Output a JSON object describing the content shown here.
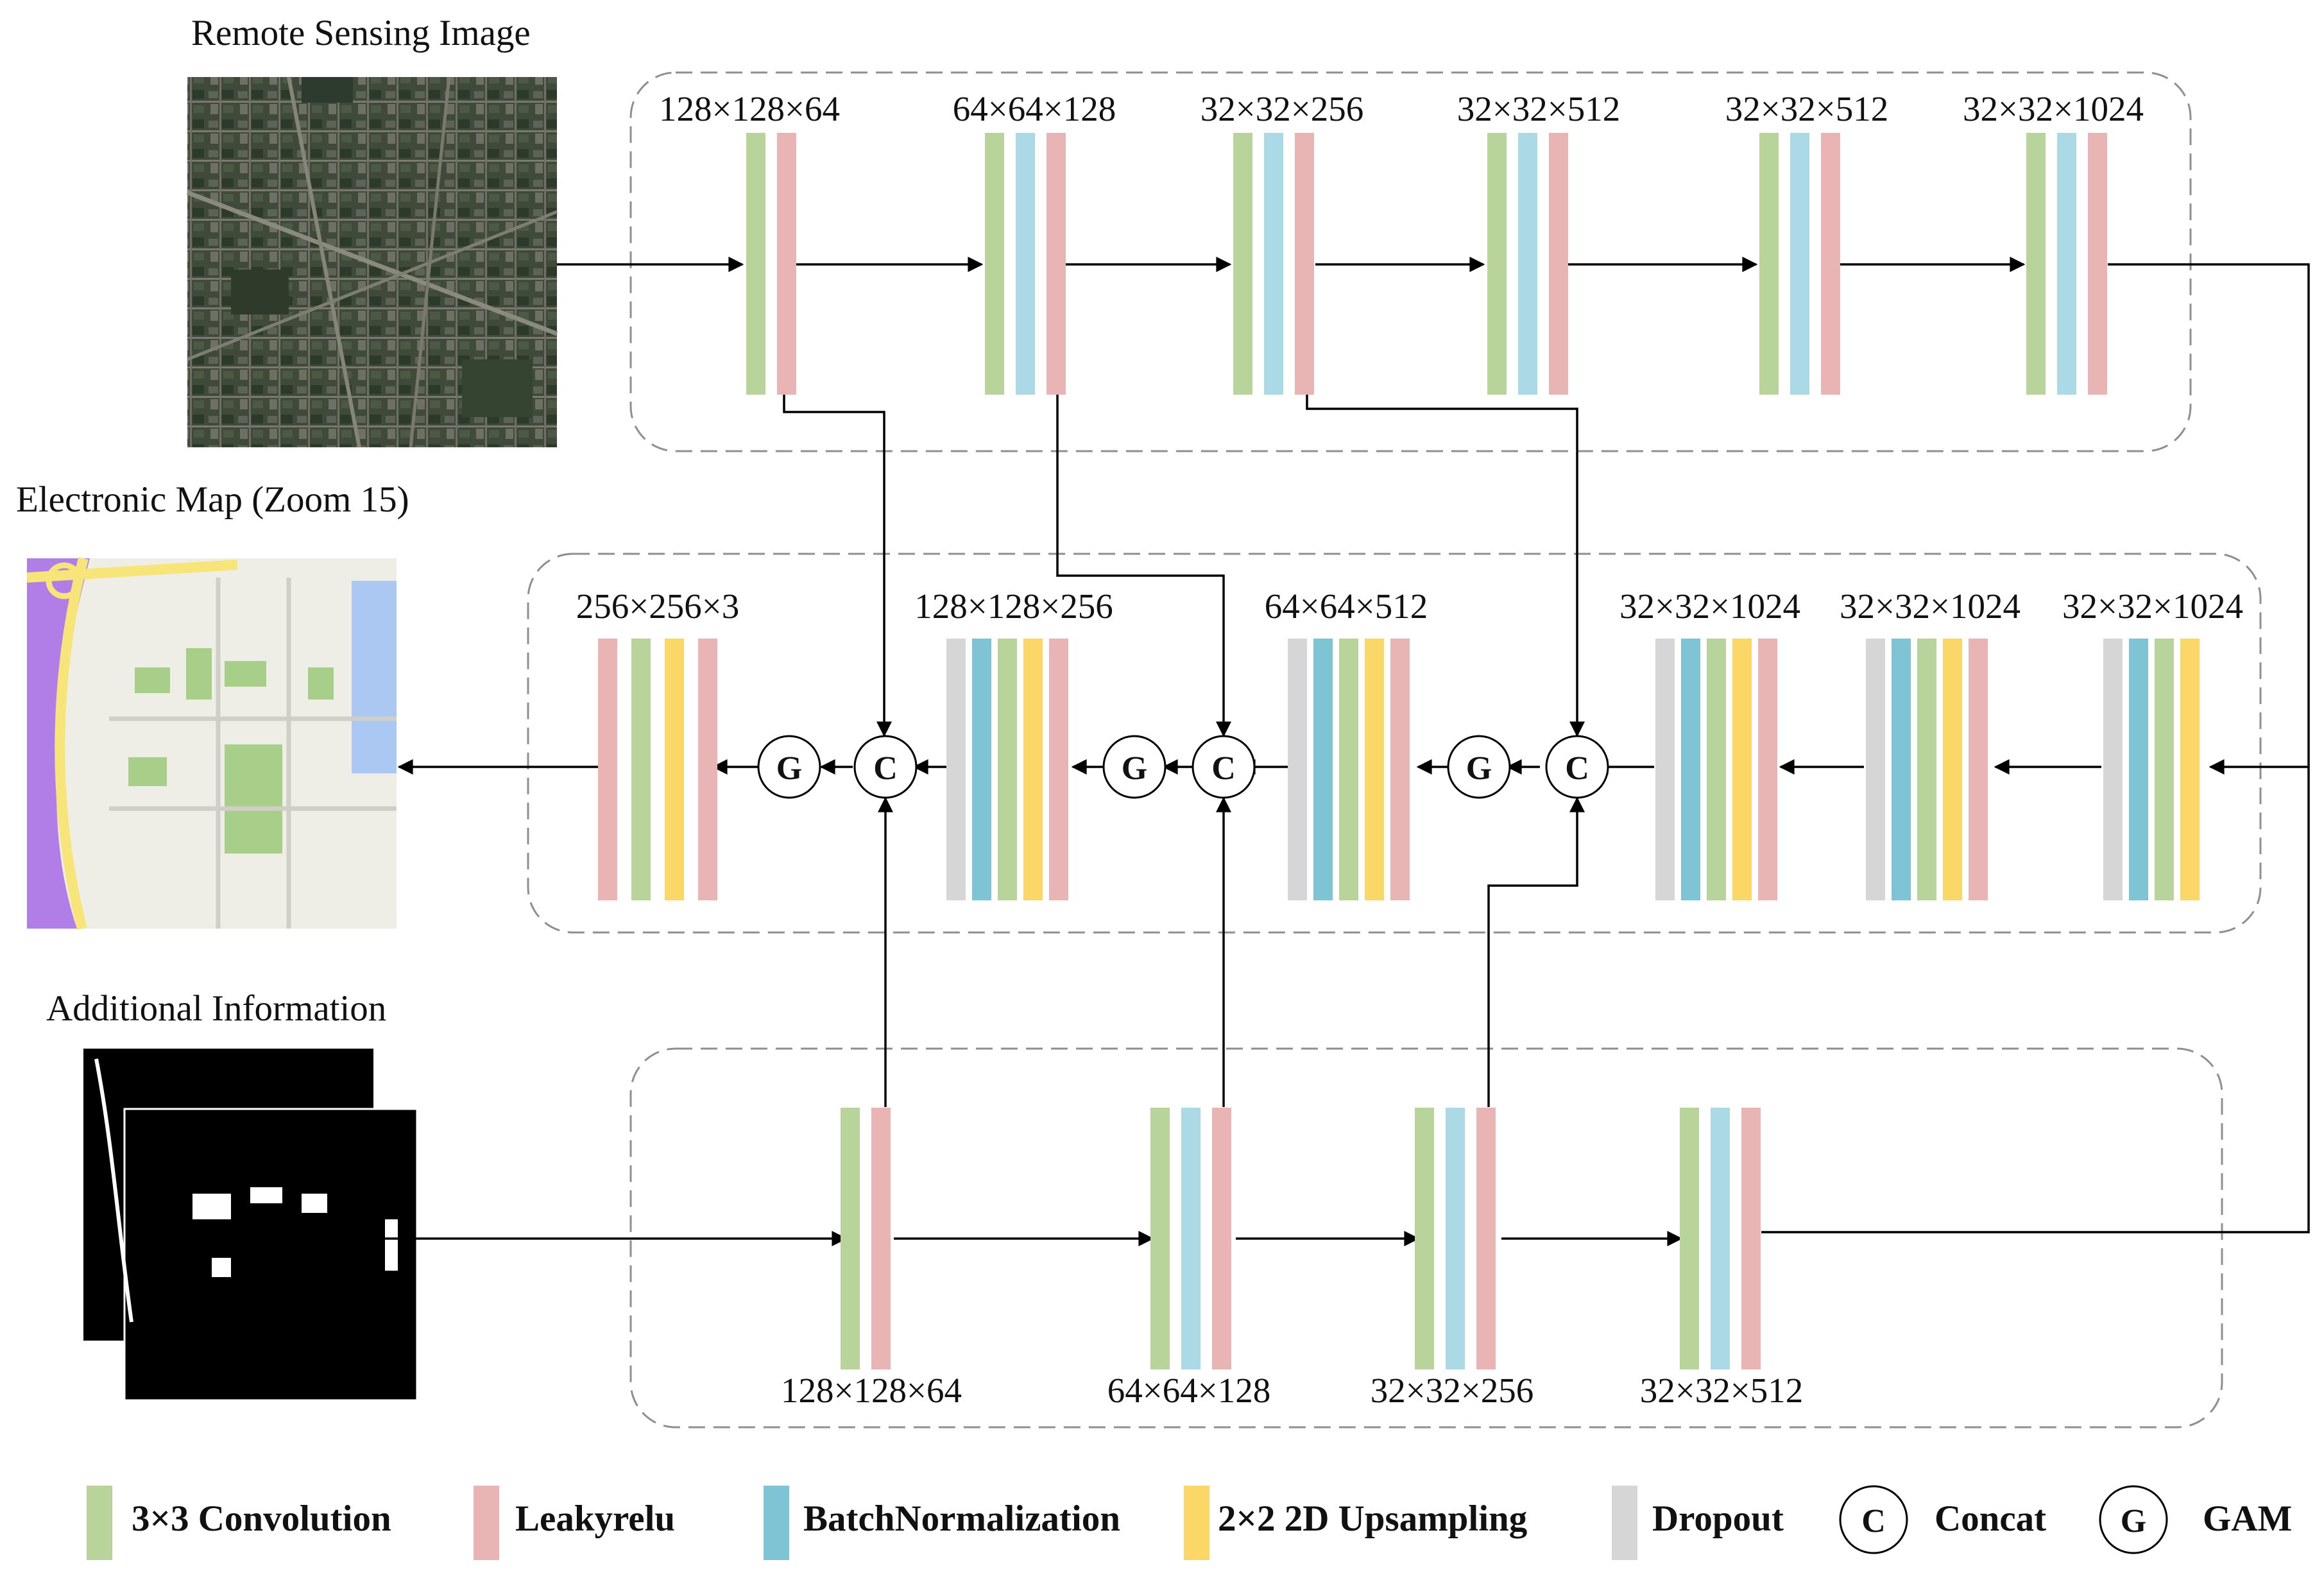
{
  "colors": {
    "conv": "#b8d49b",
    "leaky": "#e8b4b4",
    "bn": "#acd9e6",
    "bn_mid": "#7ec4d4",
    "up": "#fad766",
    "drop": "#d6d6d6",
    "dash": "#8f8f8f"
  },
  "titles": {
    "remote": "Remote Sensing Image",
    "map": "Electronic Map (Zoom 15)",
    "additional": "Additional Information"
  },
  "encoder_labels": [
    "128×128×64",
    "64×64×128",
    "32×32×256",
    "32×32×512",
    "32×32×512",
    "32×32×1024"
  ],
  "decoder_labels": [
    "256×256×3",
    "128×128×256",
    "64×64×512",
    "32×32×1024",
    "32×32×1024",
    "32×32×1024"
  ],
  "aux_labels": [
    "128×128×64",
    "64×64×128",
    "32×32×256",
    "32×32×512"
  ],
  "blocks": {
    "encoder": [
      [
        "conv",
        "leaky"
      ],
      [
        "conv",
        "bn",
        "leaky"
      ],
      [
        "conv",
        "bn",
        "leaky"
      ],
      [
        "conv",
        "bn",
        "leaky"
      ],
      [
        "conv",
        "bn",
        "leaky"
      ],
      [
        "conv",
        "bn",
        "leaky"
      ]
    ],
    "decoder": [
      [
        "leaky",
        "conv",
        "up",
        "leaky"
      ],
      [
        "drop",
        "bn_mid",
        "conv",
        "up",
        "leaky"
      ],
      [
        "drop",
        "bn_mid",
        "conv",
        "up",
        "leaky"
      ],
      [
        "drop",
        "bn_mid",
        "conv",
        "up",
        "leaky"
      ],
      [
        "drop",
        "bn_mid",
        "conv",
        "up",
        "leaky"
      ],
      [
        "drop",
        "bn_mid",
        "conv",
        "up"
      ]
    ],
    "aux": [
      [
        "conv",
        "leaky"
      ],
      [
        "conv",
        "bn",
        "leaky"
      ],
      [
        "conv",
        "bn",
        "leaky"
      ],
      [
        "conv",
        "bn",
        "leaky"
      ]
    ]
  },
  "nodes": {
    "concat": "C",
    "gam": "G"
  },
  "legend": [
    {
      "type": "swatch",
      "color": "conv",
      "label": "3×3 Convolution"
    },
    {
      "type": "swatch",
      "color": "leaky",
      "label": "Leakyrelu"
    },
    {
      "type": "swatch",
      "color": "bn_mid",
      "label": "BatchNormalization"
    },
    {
      "type": "swatch",
      "color": "up",
      "label": "2×2 2D Upsampling"
    },
    {
      "type": "swatch",
      "color": "drop",
      "label": "Dropout"
    },
    {
      "type": "circle",
      "symbol": "C",
      "label": "Concat"
    },
    {
      "type": "circle",
      "symbol": "G",
      "label": "GAM"
    }
  ]
}
